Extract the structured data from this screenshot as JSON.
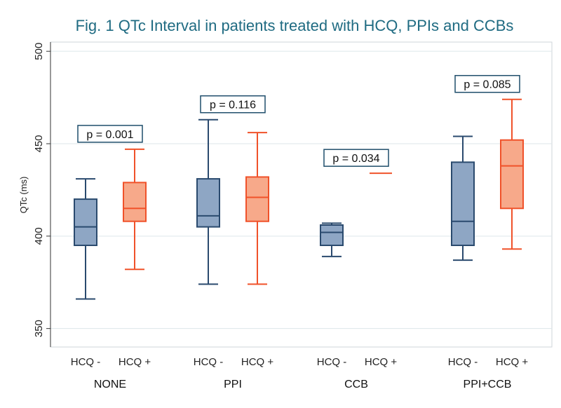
{
  "chart_data": {
    "type": "box",
    "title": "Fig. 1 QTc Interval in patients treated with HCQ,  PPIs and CCBs",
    "ylabel": "QTc (ms)",
    "ylim": [
      340,
      505
    ],
    "yticks": [
      350,
      400,
      450,
      500
    ],
    "grid": true,
    "groups": [
      {
        "name": "NONE",
        "p_label": "p = 0.001",
        "boxes": [
          {
            "label": "HCQ -",
            "min": 366,
            "q1": 395,
            "median": 405,
            "q3": 420,
            "max": 431
          },
          {
            "label": "HCQ +",
            "min": 382,
            "q1": 408,
            "median": 415,
            "q3": 429,
            "max": 447
          }
        ]
      },
      {
        "name": "PPI",
        "p_label": "p = 0.116",
        "boxes": [
          {
            "label": "HCQ -",
            "min": 374,
            "q1": 405,
            "median": 411,
            "q3": 431,
            "max": 463
          },
          {
            "label": "HCQ +",
            "min": 374,
            "q1": 408,
            "median": 421,
            "q3": 432,
            "max": 456
          }
        ]
      },
      {
        "name": "CCB",
        "p_label": "p = 0.034",
        "boxes": [
          {
            "label": "HCQ -",
            "min": 389,
            "q1": 395,
            "median": 402,
            "q3": 406,
            "max": 407
          },
          {
            "label": "HCQ +",
            "min": 434,
            "q1": 434,
            "median": 434,
            "q3": 434,
            "max": 434
          }
        ]
      },
      {
        "name": "PPI+CCB",
        "p_label": "p = 0.085",
        "boxes": [
          {
            "label": "HCQ -",
            "min": 387,
            "q1": 395,
            "median": 408,
            "q3": 440,
            "max": 454
          },
          {
            "label": "HCQ +",
            "min": 393,
            "q1": 415,
            "median": 438,
            "q3": 452,
            "max": 474
          }
        ]
      }
    ],
    "colors": {
      "hcq_minus_fill": "#8ea6c4",
      "hcq_minus_line": "#2a4a6e",
      "hcq_plus_fill": "#f7a98a",
      "hcq_plus_line": "#f0522a",
      "title": "#1f6b82",
      "grid": "#dde6ea"
    }
  }
}
